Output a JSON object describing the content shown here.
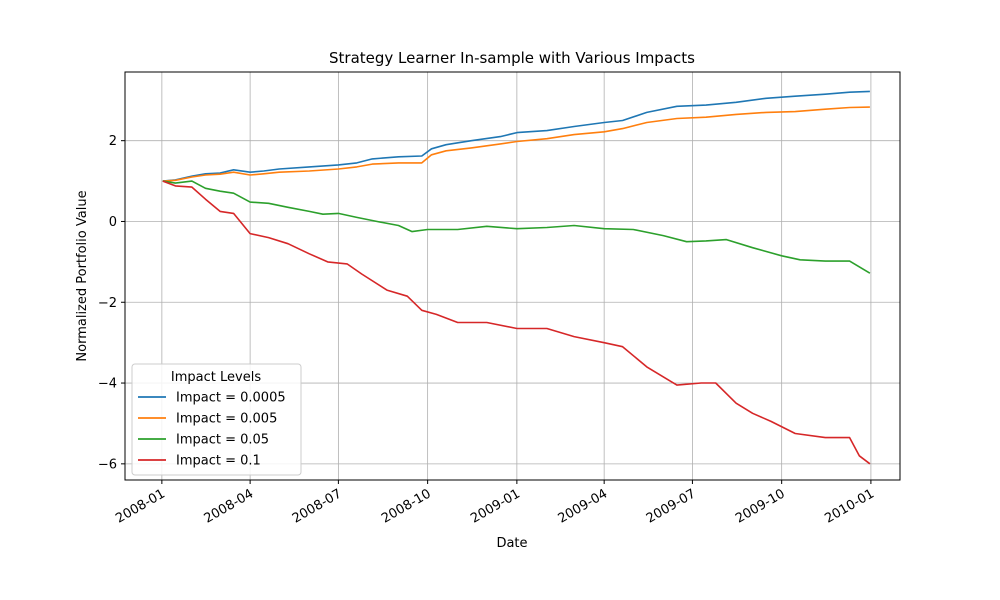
{
  "chart_data": {
    "type": "line",
    "title": "Strategy Learner In-sample with Various Impacts",
    "xlabel": "Date",
    "ylabel": "Normalized Portfolio Value",
    "x_ticks": [
      "2008-01",
      "2008-04",
      "2008-07",
      "2008-10",
      "2009-01",
      "2009-04",
      "2009-07",
      "2009-10",
      "2010-01"
    ],
    "y_ticks": [
      -6,
      -4,
      -2,
      0,
      2
    ],
    "xlim": [
      "2007-11-24",
      "2010-01-31"
    ],
    "ylim": [
      -6.4,
      3.7
    ],
    "grid": true,
    "legend": {
      "title": "Impact Levels",
      "position": "lower-left"
    },
    "series": [
      {
        "name": "Impact = 0.0005",
        "color": "#1f77b4",
        "points": [
          [
            "2008-01-02",
            1.0
          ],
          [
            "2008-01-15",
            1.03
          ],
          [
            "2008-02-01",
            1.12
          ],
          [
            "2008-02-15",
            1.18
          ],
          [
            "2008-03-01",
            1.2
          ],
          [
            "2008-03-15",
            1.28
          ],
          [
            "2008-04-01",
            1.22
          ],
          [
            "2008-04-15",
            1.25
          ],
          [
            "2008-05-01",
            1.3
          ],
          [
            "2008-06-01",
            1.35
          ],
          [
            "2008-07-01",
            1.4
          ],
          [
            "2008-07-20",
            1.45
          ],
          [
            "2008-08-05",
            1.55
          ],
          [
            "2008-09-01",
            1.6
          ],
          [
            "2008-09-25",
            1.62
          ],
          [
            "2008-10-05",
            1.8
          ],
          [
            "2008-10-20",
            1.9
          ],
          [
            "2008-11-15",
            2.0
          ],
          [
            "2008-12-15",
            2.1
          ],
          [
            "2009-01-01",
            2.2
          ],
          [
            "2009-02-01",
            2.25
          ],
          [
            "2009-03-01",
            2.35
          ],
          [
            "2009-04-01",
            2.45
          ],
          [
            "2009-04-20",
            2.5
          ],
          [
            "2009-05-15",
            2.7
          ],
          [
            "2009-06-15",
            2.85
          ],
          [
            "2009-07-15",
            2.88
          ],
          [
            "2009-08-15",
            2.95
          ],
          [
            "2009-09-15",
            3.05
          ],
          [
            "2009-10-15",
            3.1
          ],
          [
            "2009-11-15",
            3.15
          ],
          [
            "2009-12-10",
            3.2
          ],
          [
            "2009-12-31",
            3.22
          ]
        ]
      },
      {
        "name": "Impact = 0.005",
        "color": "#ff7f0e",
        "points": [
          [
            "2008-01-02",
            1.0
          ],
          [
            "2008-01-15",
            1.02
          ],
          [
            "2008-02-01",
            1.1
          ],
          [
            "2008-02-15",
            1.15
          ],
          [
            "2008-03-01",
            1.17
          ],
          [
            "2008-03-15",
            1.22
          ],
          [
            "2008-04-01",
            1.15
          ],
          [
            "2008-04-15",
            1.18
          ],
          [
            "2008-05-01",
            1.22
          ],
          [
            "2008-06-01",
            1.25
          ],
          [
            "2008-07-01",
            1.3
          ],
          [
            "2008-07-20",
            1.35
          ],
          [
            "2008-08-05",
            1.42
          ],
          [
            "2008-09-01",
            1.45
          ],
          [
            "2008-09-25",
            1.45
          ],
          [
            "2008-10-05",
            1.65
          ],
          [
            "2008-10-20",
            1.75
          ],
          [
            "2008-11-15",
            1.82
          ],
          [
            "2008-12-15",
            1.92
          ],
          [
            "2009-01-01",
            1.98
          ],
          [
            "2009-02-01",
            2.05
          ],
          [
            "2009-03-01",
            2.15
          ],
          [
            "2009-04-01",
            2.22
          ],
          [
            "2009-04-20",
            2.3
          ],
          [
            "2009-05-15",
            2.45
          ],
          [
            "2009-06-15",
            2.55
          ],
          [
            "2009-07-15",
            2.58
          ],
          [
            "2009-08-15",
            2.65
          ],
          [
            "2009-09-15",
            2.7
          ],
          [
            "2009-10-15",
            2.72
          ],
          [
            "2009-11-15",
            2.78
          ],
          [
            "2009-12-10",
            2.82
          ],
          [
            "2009-12-31",
            2.83
          ]
        ]
      },
      {
        "name": "Impact = 0.05",
        "color": "#2ca02c",
        "points": [
          [
            "2008-01-02",
            1.0
          ],
          [
            "2008-01-15",
            0.95
          ],
          [
            "2008-02-01",
            1.0
          ],
          [
            "2008-02-15",
            0.82
          ],
          [
            "2008-03-01",
            0.75
          ],
          [
            "2008-03-15",
            0.7
          ],
          [
            "2008-04-01",
            0.48
          ],
          [
            "2008-04-20",
            0.45
          ],
          [
            "2008-05-10",
            0.35
          ],
          [
            "2008-06-01",
            0.25
          ],
          [
            "2008-06-15",
            0.18
          ],
          [
            "2008-07-01",
            0.2
          ],
          [
            "2008-07-20",
            0.1
          ],
          [
            "2008-08-10",
            0.0
          ],
          [
            "2008-09-01",
            -0.1
          ],
          [
            "2008-09-15",
            -0.25
          ],
          [
            "2008-10-01",
            -0.2
          ],
          [
            "2008-11-01",
            -0.2
          ],
          [
            "2008-12-01",
            -0.12
          ],
          [
            "2009-01-01",
            -0.18
          ],
          [
            "2009-02-01",
            -0.15
          ],
          [
            "2009-03-01",
            -0.1
          ],
          [
            "2009-04-01",
            -0.18
          ],
          [
            "2009-05-01",
            -0.2
          ],
          [
            "2009-06-01",
            -0.35
          ],
          [
            "2009-06-25",
            -0.5
          ],
          [
            "2009-07-15",
            -0.48
          ],
          [
            "2009-08-05",
            -0.45
          ],
          [
            "2009-09-01",
            -0.65
          ],
          [
            "2009-10-01",
            -0.85
          ],
          [
            "2009-10-20",
            -0.95
          ],
          [
            "2009-11-15",
            -0.98
          ],
          [
            "2009-12-10",
            -0.98
          ],
          [
            "2009-12-31",
            -1.28
          ]
        ]
      },
      {
        "name": "Impact = 0.1",
        "color": "#d62728",
        "points": [
          [
            "2008-01-02",
            1.0
          ],
          [
            "2008-01-15",
            0.88
          ],
          [
            "2008-02-01",
            0.85
          ],
          [
            "2008-02-15",
            0.55
          ],
          [
            "2008-03-01",
            0.25
          ],
          [
            "2008-03-15",
            0.2
          ],
          [
            "2008-04-01",
            -0.3
          ],
          [
            "2008-04-20",
            -0.4
          ],
          [
            "2008-05-10",
            -0.55
          ],
          [
            "2008-06-01",
            -0.8
          ],
          [
            "2008-06-20",
            -1.0
          ],
          [
            "2008-07-10",
            -1.05
          ],
          [
            "2008-07-25",
            -1.3
          ],
          [
            "2008-08-20",
            -1.7
          ],
          [
            "2008-09-10",
            -1.85
          ],
          [
            "2008-09-25",
            -2.2
          ],
          [
            "2008-10-10",
            -2.3
          ],
          [
            "2008-11-01",
            -2.5
          ],
          [
            "2008-12-01",
            -2.5
          ],
          [
            "2009-01-01",
            -2.65
          ],
          [
            "2009-02-01",
            -2.65
          ],
          [
            "2009-03-01",
            -2.85
          ],
          [
            "2009-04-01",
            -3.0
          ],
          [
            "2009-04-20",
            -3.1
          ],
          [
            "2009-05-15",
            -3.6
          ],
          [
            "2009-06-15",
            -4.05
          ],
          [
            "2009-07-10",
            -4.0
          ],
          [
            "2009-07-25",
            -4.0
          ],
          [
            "2009-08-15",
            -4.5
          ],
          [
            "2009-09-01",
            -4.75
          ],
          [
            "2009-09-20",
            -4.95
          ],
          [
            "2009-10-15",
            -5.25
          ],
          [
            "2009-11-15",
            -5.35
          ],
          [
            "2009-12-10",
            -5.35
          ],
          [
            "2009-12-20",
            -5.8
          ],
          [
            "2009-12-31",
            -6.0
          ]
        ]
      }
    ]
  }
}
